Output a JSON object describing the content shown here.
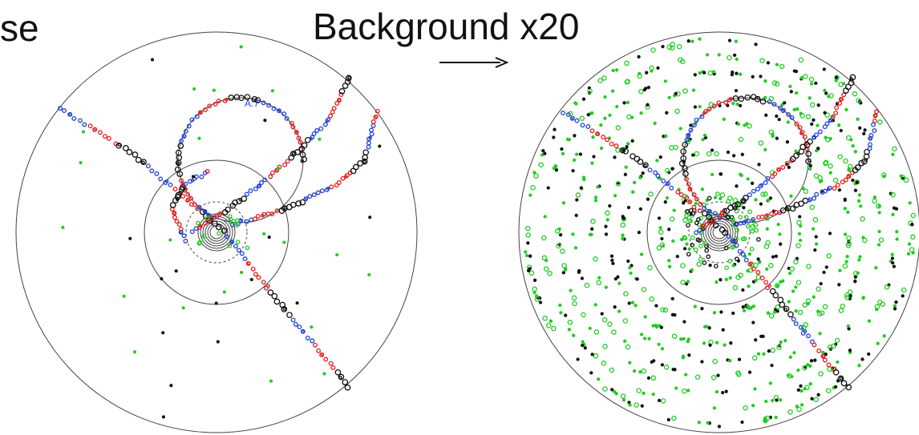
{
  "labels": {
    "left_fragment": "se",
    "center_title": "Background x20"
  },
  "colors": {
    "hit_red": "#e41a1c",
    "hit_blue": "#1f3fd6",
    "hit_black": "#111111",
    "hit_green": "#22cc22",
    "ring": "#444444"
  },
  "left_track_label": "A.7"
}
